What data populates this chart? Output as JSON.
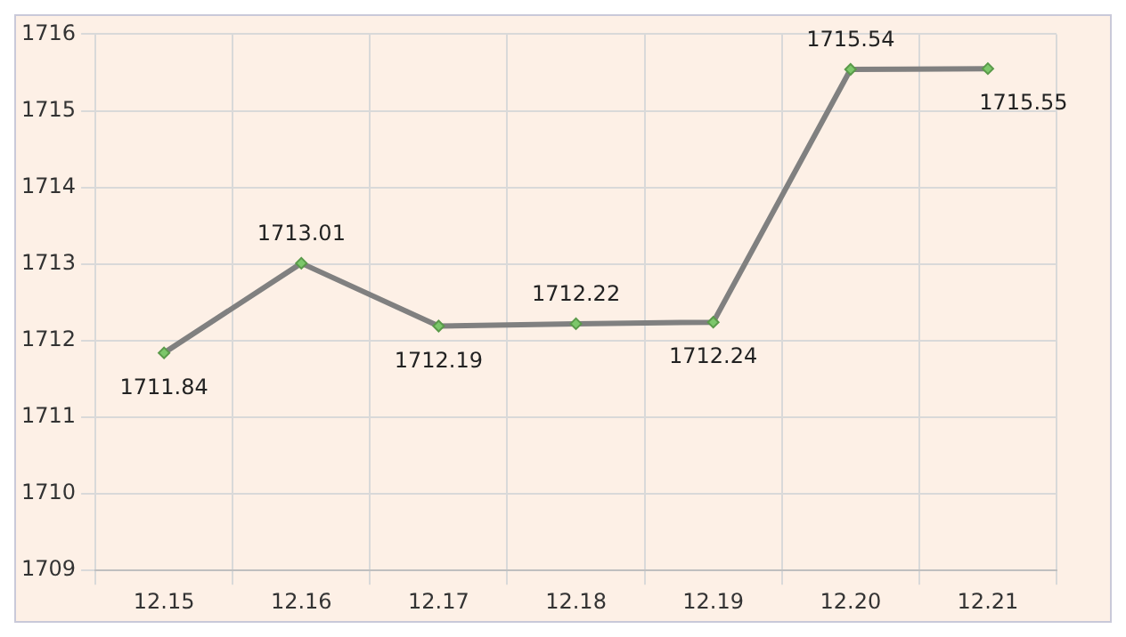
{
  "chart_data": {
    "type": "line",
    "categories": [
      "12.15",
      "12.16",
      "12.17",
      "12.18",
      "12.19",
      "12.20",
      "12.21"
    ],
    "series": [
      {
        "color": "#808080",
        "values": [
          1711.84,
          1713.01,
          1712.19,
          1712.22,
          1712.24,
          1715.54,
          1715.55
        ]
      }
    ],
    "ylim": [
      1709,
      1716
    ],
    "yticks": [
      1709,
      1710,
      1711,
      1712,
      1713,
      1714,
      1715,
      1716
    ],
    "grid": true,
    "legend": false,
    "marker": "diamond",
    "data_labels": true
  }
}
